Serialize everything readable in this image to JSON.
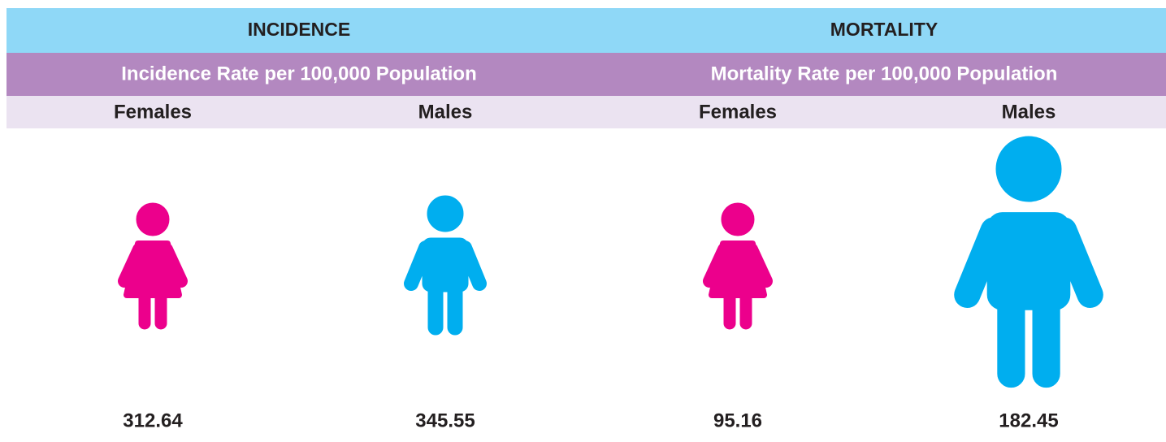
{
  "sections": [
    {
      "title": "INCIDENCE",
      "subtitle": "Incidence Rate per 100,000 Population",
      "groups": [
        {
          "label": "Females",
          "value": 312.64
        },
        {
          "label": "Males",
          "value": 345.55
        }
      ]
    },
    {
      "title": "MORTALITY",
      "subtitle": "Mortality Rate per 100,000 Population",
      "groups": [
        {
          "label": "Females",
          "value": 95.16
        },
        {
          "label": "Males",
          "value": 182.45
        }
      ]
    }
  ]
}
